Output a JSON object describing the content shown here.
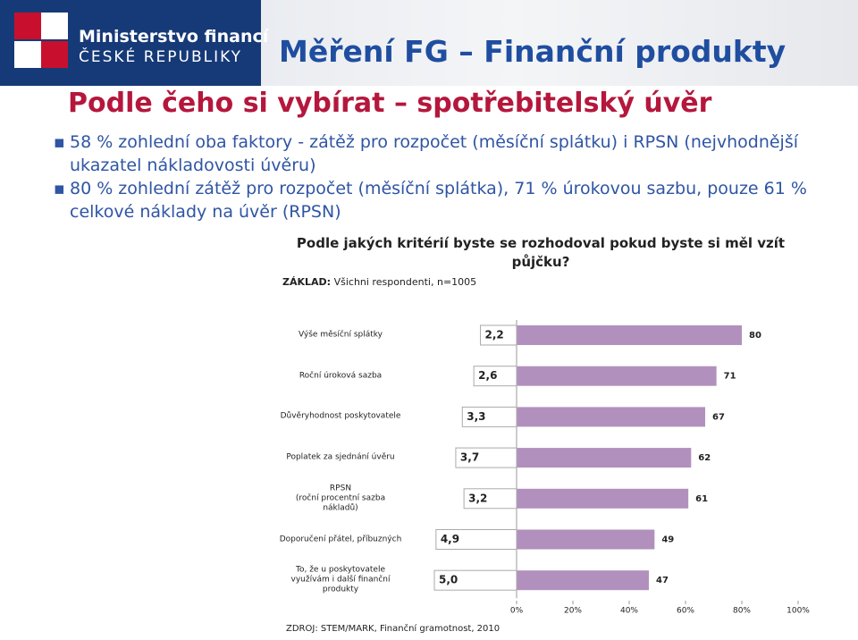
{
  "header": {
    "logo_line1": "Ministerstvo financí",
    "logo_line2": "ČESKÉ REPUBLIKY",
    "title": "Měření FG – Finanční produkty"
  },
  "subtitle": "Podle čeho si vybírat – spotřebitelský úvěr",
  "bullets": [
    "58 % zohlední oba faktory - zátěž pro rozpočet (měsíční splátku) i RPSN (nejvhodnější ukazatel nákladovosti úvěru)",
    "80 % zohlední zátěž pro rozpočet (měsíční splátka), 71 % úrokovou sazbu, pouze 61 % celkové náklady na úvěr (RPSN)"
  ],
  "chart_data": {
    "type": "bar",
    "orientation": "horizontal",
    "title": "Podle jakých kritérií byste se rozhodoval pokud byste si měl vzít půjčku?",
    "base_label": "ZÁKLAD:",
    "base_text": "Všichni respondenti, n=1005",
    "source": "ZDROJ: STEM/MARK, Finanční gramotnost, 2010",
    "categories": [
      "Výše měsíční splátky",
      "Roční úroková sazba",
      "Důvěryhodnost poskytovatele",
      "Poplatek za sjednání úvěru",
      "RPSN\n(roční procentní sazba\nnákladů)",
      "Doporučení přátel, příbuzných",
      "To, že u poskytovatele\nvyužívám i další finanční\nprodukty"
    ],
    "values": [
      80,
      71,
      67,
      62,
      61,
      49,
      47
    ],
    "color": "#b290bd",
    "mean_values": [
      2.2,
      2.6,
      3.3,
      3.7,
      3.2,
      4.9,
      5.0
    ],
    "mean_value_labels": [
      "2,2",
      "2,6",
      "3,3",
      "3,7",
      "3,2",
      "4,9",
      "5,0"
    ],
    "xlim": [
      0,
      100
    ],
    "xticks": [
      {
        "value": 0,
        "label": "0%"
      },
      {
        "value": 20,
        "label": "20%"
      },
      {
        "value": 40,
        "label": "40%"
      },
      {
        "value": 60,
        "label": "60%"
      },
      {
        "value": 80,
        "label": "80%"
      },
      {
        "value": 100,
        "label": "100%"
      }
    ]
  }
}
